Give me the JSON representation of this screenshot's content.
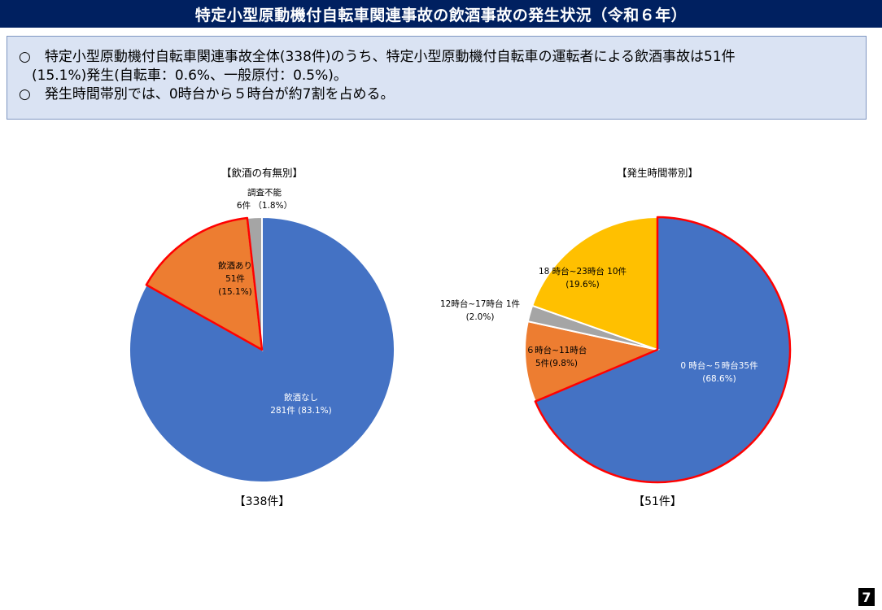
{
  "header": {
    "title": "特定小型原動機付自転車関連事故の飲酒事故の発生状況（令和６年）"
  },
  "summary": {
    "line1": "○　特定小型原動機付自転車関連事故全体(338件)のうち、特定小型原動機付自転車の運転者による飲酒事故は51件",
    "line2": "(15.1%)発生(自転車：0.6%、一般原付：0.5%)。",
    "line3": "○　発生時間帯別では、0時台から５時台が約7割を占める。"
  },
  "colors": {
    "blue": "#4472c4",
    "orange": "#ed7d31",
    "gray": "#a5a5a5",
    "gold": "#ffc000",
    "highlight": "#ff0000"
  },
  "chart_data": [
    {
      "type": "pie",
      "title": "【飲酒の有無別】",
      "total_label": "【338件】",
      "slices": [
        {
          "name": "飲酒なし",
          "value": 281,
          "pct": 83.1,
          "label_lines": [
            "飲酒なし",
            "281件 (83.1%)"
          ],
          "color": "#4472c4",
          "highlight": false,
          "label_color": "#ffffff"
        },
        {
          "name": "飲酒あり",
          "value": 51,
          "pct": 15.1,
          "label_lines": [
            "飲酒あり",
            "51件",
            "(15.1%)"
          ],
          "color": "#ed7d31",
          "highlight": true,
          "label_color": "#000000"
        },
        {
          "name": "調査不能",
          "value": 6,
          "pct": 1.8,
          "label_lines": [
            "調査不能",
            "6件 （1.8%）"
          ],
          "color": "#a5a5a5",
          "highlight": false,
          "label_color": "#000000"
        }
      ]
    },
    {
      "type": "pie",
      "title": "【発生時間帯別】",
      "total_label": "【51件】",
      "slices": [
        {
          "name": "0時台~５時台",
          "value": 35,
          "pct": 68.6,
          "label_lines": [
            "0 時台~５時台35件",
            "(68.6%)"
          ],
          "color": "#4472c4",
          "highlight": true,
          "label_color": "#ffffff"
        },
        {
          "name": "６時台~11時台",
          "value": 5,
          "pct": 9.8,
          "label_lines": [
            "６時台~11時台",
            "5件(9.8%)"
          ],
          "color": "#ed7d31",
          "highlight": false,
          "label_color": "#000000"
        },
        {
          "name": "12時台~17時台",
          "value": 1,
          "pct": 2.0,
          "label_lines": [
            "12時台~17時台 1件",
            "(2.0%)"
          ],
          "color": "#a5a5a5",
          "highlight": false,
          "label_color": "#000000"
        },
        {
          "name": "18時台~23時台",
          "value": 10,
          "pct": 19.6,
          "label_lines": [
            "18 時台~23時台 10件",
            "(19.6%)"
          ],
          "color": "#ffc000",
          "highlight": false,
          "label_color": "#000000"
        }
      ]
    }
  ],
  "page_number": "7"
}
